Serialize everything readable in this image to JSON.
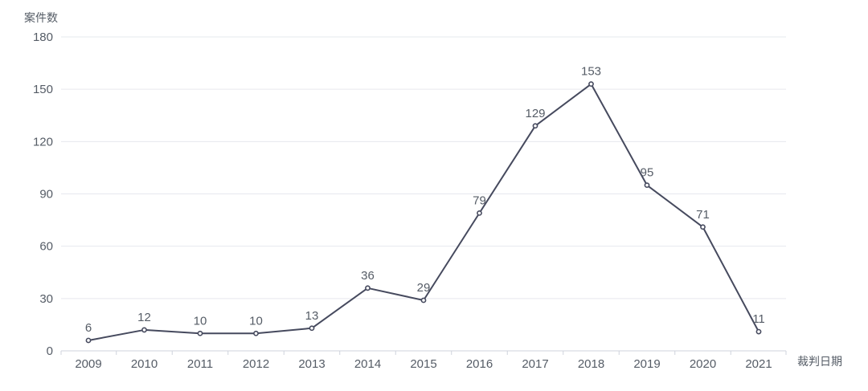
{
  "chart_data": {
    "type": "line",
    "title": "",
    "xlabel": "裁判日期",
    "ylabel": "案件数",
    "categories": [
      "2009",
      "2010",
      "2011",
      "2012",
      "2013",
      "2014",
      "2015",
      "2016",
      "2017",
      "2018",
      "2019",
      "2020",
      "2021"
    ],
    "series": [
      {
        "values": [
          6,
          12,
          10,
          10,
          13,
          36,
          29,
          79,
          129,
          153,
          95,
          71,
          11
        ]
      }
    ],
    "ylim": [
      0,
      180
    ],
    "yticks": [
      0,
      30,
      60,
      90,
      120,
      150,
      180
    ],
    "grid": true,
    "line_color": "#464a5e",
    "data_labels": true
  }
}
